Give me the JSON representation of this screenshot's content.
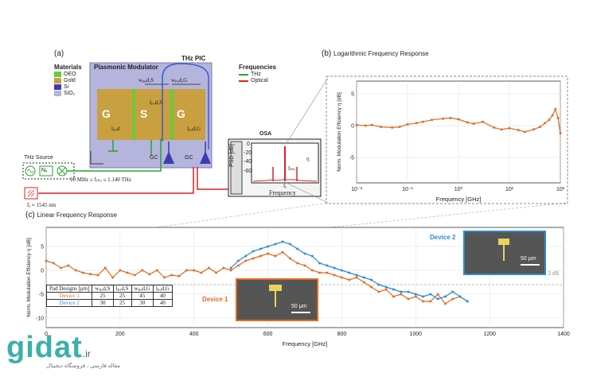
{
  "panel_a": {
    "label": "(a)",
    "materials_title": "Materials",
    "materials": [
      {
        "name": "OEO",
        "color": "#6cc83c"
      },
      {
        "name": "Gold",
        "color": "#c8a040"
      },
      {
        "name": "Si",
        "color": "#3c3cb4"
      },
      {
        "name": "SiO₂",
        "color": "#b4b4dc"
      }
    ],
    "pic_title": "THz PIC",
    "modulator_title": "Plasmonic Modulator",
    "electrodes": [
      "G",
      "S",
      "G"
    ],
    "dims": [
      "wₚₐd,S",
      "wₚₐd,G",
      "lₚₐd,S",
      "lₚₐd,G",
      "lₚₐd"
    ],
    "gc_labels": [
      "GC",
      "GC"
    ],
    "frequencies_title": "Frequencies",
    "freq_legend": [
      {
        "name": "THz",
        "color": "#2ca02c"
      },
      {
        "name": "Optical",
        "color": "#e02020"
      }
    ],
    "thz_source_label": "THz Source",
    "multiplier_label": "Nₓ",
    "freq_range": "10 MHz ≤ fₜₕₓ ≤ 1.140 THz",
    "laser_label": "fₑ ≈ 1545 nm",
    "osa_title": "OSA",
    "osa_ylabel": "PSD [dB]",
    "osa_yticks": [
      "0",
      "-20",
      "-40",
      "-60"
    ],
    "osa_xlabel": "Frequency",
    "osa_fc": "fₑ",
    "osa_fthz": "fₜₕₓ",
    "osa_eta": "η"
  },
  "panel_b": {
    "label": "(b)",
    "title": "Logarithmic Frequency Response"
  },
  "panel_c": {
    "label": "(c)",
    "title": "Linear Frequency Response",
    "threshold_label": "3 dB",
    "device2_label": "Device 2",
    "device1_label": "Device 1",
    "scale_label_1": "50 μm",
    "scale_label_2": "50 μm",
    "table": {
      "header": [
        "Pad Designs [μm]",
        "wₚₐd,S",
        "lₚₐd,S",
        "wₚₐd,G",
        "lₚₐd,G"
      ],
      "rows": [
        {
          "name": "Device 1",
          "color": "#e06a20",
          "values": [
            "25",
            "25",
            "45",
            "40"
          ]
        },
        {
          "name": "Device 2",
          "color": "#2a8ad0",
          "values": [
            "30",
            "25",
            "30",
            "40"
          ]
        }
      ]
    }
  },
  "watermark": {
    "brand": "gidat",
    "tld": ".ir",
    "tagline": "مقاله فارسی ، فروشگاه دیجیتال"
  },
  "chart_data": [
    {
      "type": "line",
      "name": "log",
      "xlabel": "Frequency [GHz]",
      "ylabel": "Norm. Modulation Efficiency η [dB]",
      "xscale": "log",
      "xlim": [
        0.01,
        100
      ],
      "ylim": [
        -9,
        7
      ],
      "xticks": [
        0.01,
        0.1,
        1,
        10,
        100
      ],
      "xtick_labels": [
        "10⁻²",
        "10⁻¹",
        "10⁰",
        "10¹",
        "10²"
      ],
      "yticks": [
        -5,
        0,
        5
      ],
      "grid": true,
      "series": [
        {
          "color": "#e06a20",
          "x": [
            0.01,
            0.015,
            0.02,
            0.03,
            0.05,
            0.07,
            0.1,
            0.15,
            0.2,
            0.3,
            0.5,
            0.7,
            1,
            1.5,
            2,
            3,
            5,
            7,
            10,
            15,
            20,
            30,
            40,
            50,
            60,
            70,
            80,
            90,
            100
          ],
          "y": [
            0.1,
            0.0,
            0.1,
            -0.2,
            -0.3,
            -0.2,
            0.2,
            0.4,
            0.6,
            0.9,
            1.1,
            1.2,
            1.0,
            0.5,
            0.3,
            0.6,
            -0.3,
            -0.6,
            -0.4,
            -0.7,
            -1.0,
            -0.6,
            -0.2,
            0.4,
            0.9,
            1.6,
            2.6,
            1.2,
            -1.2
          ]
        }
      ]
    },
    {
      "type": "line",
      "name": "linear",
      "xlabel": "Frequency [GHz]",
      "ylabel": "Norm. Modulation Efficiency η [dB]",
      "xlim": [
        0,
        1400
      ],
      "ylim": [
        -12,
        9
      ],
      "xticks": [
        0,
        200,
        400,
        600,
        800,
        1000,
        1200,
        1400
      ],
      "yticks": [
        -10,
        -5,
        0,
        5
      ],
      "threshold_y": -3,
      "grid": true,
      "series": [
        {
          "name": "Device 1",
          "color": "#e06a20",
          "x": [
            0,
            20,
            40,
            60,
            80,
            100,
            120,
            140,
            160,
            180,
            200,
            220,
            240,
            260,
            280,
            300,
            320,
            340,
            360,
            380,
            400,
            420,
            440,
            460,
            480,
            500,
            520,
            540,
            560,
            580,
            600,
            620,
            640,
            660,
            680,
            700,
            720,
            740,
            760,
            780,
            800,
            820,
            840,
            860,
            880,
            900,
            920,
            940,
            960,
            980,
            1000,
            1020,
            1040,
            1060,
            1080,
            1100,
            1120,
            1140
          ],
          "y": [
            2.0,
            1.5,
            0.5,
            1.0,
            0.0,
            -0.5,
            -0.8,
            -1.0,
            0.5,
            -1.5,
            0.0,
            -0.5,
            -1.0,
            0.0,
            -0.8,
            0.0,
            -1.5,
            -1.0,
            -1.2,
            0.0,
            0.0,
            -0.5,
            0.5,
            -0.5,
            0.5,
            0.0,
            1.0,
            2.0,
            2.5,
            3.0,
            3.5,
            3.0,
            3.8,
            2.5,
            1.5,
            1.0,
            0.0,
            -0.5,
            -0.5,
            -1.0,
            -1.5,
            -2.0,
            -1.5,
            -2.5,
            -3.5,
            -4.5,
            -4.0,
            -5.5,
            -5.0,
            -6.0,
            -5.5,
            -6.5,
            -6.5,
            -5.0,
            -7.0,
            -6.0,
            -5.5,
            -6.5
          ]
        },
        {
          "name": "Device 2",
          "color": "#2a8ad0",
          "x": [
            500,
            520,
            540,
            560,
            580,
            600,
            620,
            640,
            660,
            680,
            700,
            720,
            740,
            760,
            780,
            800,
            820,
            840,
            860,
            880,
            900,
            920,
            940,
            960,
            980,
            1000,
            1020,
            1040,
            1060,
            1080,
            1100,
            1120,
            1140
          ],
          "y": [
            0.5,
            2.0,
            3.0,
            4.0,
            4.5,
            5.0,
            5.5,
            6.0,
            5.5,
            4.5,
            3.5,
            3.0,
            1.5,
            1.0,
            0.5,
            0.0,
            -0.5,
            -1.0,
            -1.5,
            -2.0,
            -3.0,
            -3.5,
            -4.0,
            -4.5,
            -4.5,
            -5.0,
            -5.5,
            -5.0,
            -6.0,
            -5.5,
            -4.5,
            -5.5,
            -6.5
          ]
        }
      ]
    }
  ]
}
